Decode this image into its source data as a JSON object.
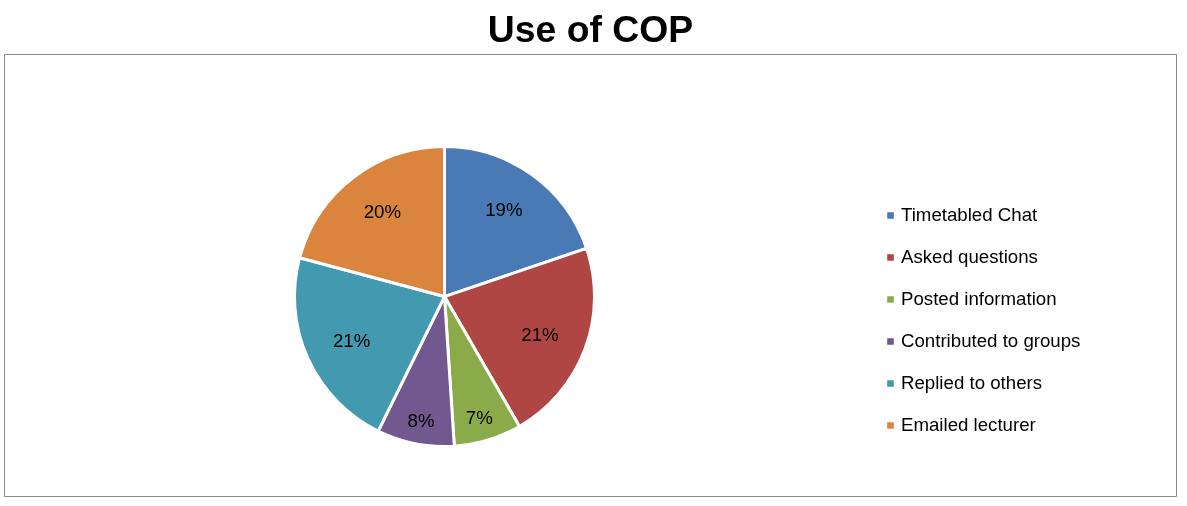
{
  "chart_data": {
    "type": "pie",
    "title": "Use of COP",
    "categories": [
      "Timetabled Chat",
      "Asked questions",
      "Posted information",
      "Contributed to groups",
      "Replied to others",
      "Emailed lecturer"
    ],
    "values": [
      19,
      21,
      7,
      8,
      21,
      20
    ],
    "value_labels": [
      "19%",
      "21%",
      "7%",
      "8%",
      "21%",
      "20%"
    ],
    "colors": [
      "#4a7ab5",
      "#b04644",
      "#8bab4a",
      "#71588f",
      "#4299b0",
      "#db843d"
    ],
    "legend": "right"
  }
}
